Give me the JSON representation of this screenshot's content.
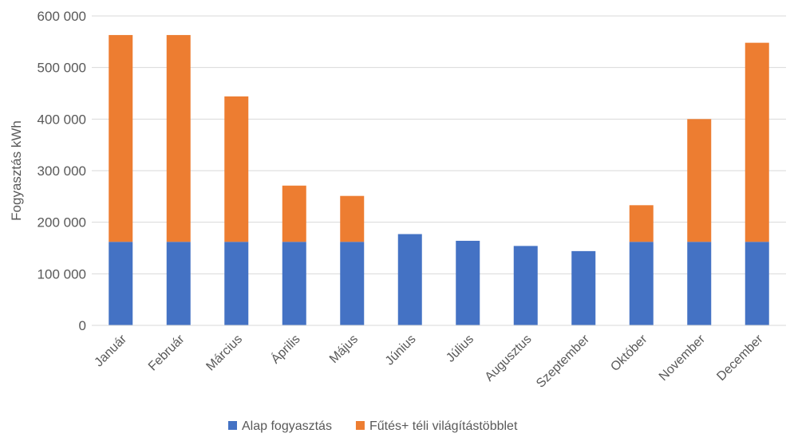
{
  "chart_data": {
    "type": "bar",
    "stacked": true,
    "ylabel": "Fogyasztás kWh",
    "ylim": [
      0,
      600000
    ],
    "yticks": [
      0,
      100000,
      200000,
      300000,
      400000,
      500000,
      600000
    ],
    "ytick_labels": [
      "0",
      "100 000",
      "200 000",
      "300 000",
      "400 000",
      "500 000",
      "600 000"
    ],
    "categories": [
      "Január",
      "Február",
      "Március",
      "Április",
      "Május",
      "Június",
      "Július",
      "Augusztus",
      "Szeptember",
      "Október",
      "November",
      "December"
    ],
    "series": [
      {
        "name": "Alap fogyasztás",
        "color": "#4472C4",
        "values": [
          162000,
          162000,
          162000,
          162000,
          162000,
          177000,
          164000,
          154000,
          144000,
          162000,
          162000,
          162000
        ]
      },
      {
        "name": "Fűtés+ téli világítástöbblet",
        "color": "#ED7D31",
        "values": [
          401000,
          401000,
          282000,
          109000,
          89000,
          0,
          0,
          0,
          0,
          71000,
          238000,
          386000
        ]
      }
    ],
    "grid": true,
    "legend_position": "bottom"
  }
}
